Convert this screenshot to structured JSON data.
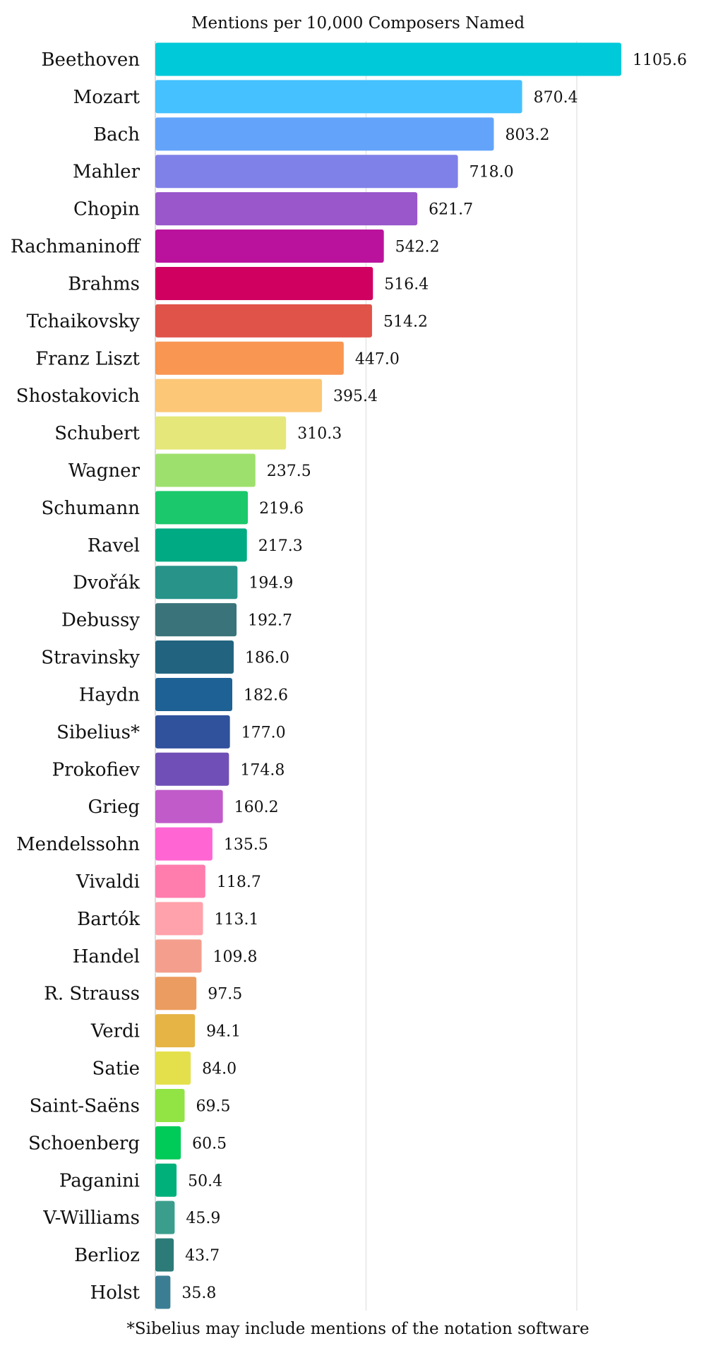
{
  "chart_data": {
    "type": "bar",
    "orientation": "horizontal",
    "title": "Mentions per 10,000 Composers Named",
    "xlabel": "",
    "ylabel": "",
    "xlim": [
      0,
      2000
    ],
    "grid": true,
    "footnote": "*Sibelius may include mentions of the notation software",
    "categories": [
      "Beethoven",
      "Mozart",
      "Bach",
      "Mahler",
      "Chopin",
      "Rachmaninoff",
      "Brahms",
      "Tchaikovsky",
      "Franz Liszt",
      "Shostakovich",
      "Schubert",
      "Wagner",
      "Schumann",
      "Ravel",
      "Dvořák",
      "Debussy",
      "Stravinsky",
      "Haydn",
      "Sibelius*",
      "Prokofiev",
      "Grieg",
      "Mendelssohn",
      "Vivaldi",
      "Bartók",
      "Handel",
      "R. Strauss",
      "Verdi",
      "Satie",
      "Saint-Saëns",
      "Schoenberg",
      "Paganini",
      "V-Williams",
      "Berlioz",
      "Holst"
    ],
    "values": [
      1105.6,
      870.4,
      803.2,
      718.0,
      621.7,
      542.2,
      516.4,
      514.2,
      447.0,
      395.4,
      310.3,
      237.5,
      219.6,
      217.3,
      194.9,
      192.7,
      186.0,
      182.6,
      177.0,
      174.8,
      160.2,
      135.5,
      118.7,
      113.1,
      109.8,
      97.5,
      94.1,
      84.0,
      69.5,
      60.5,
      50.4,
      45.9,
      43.7,
      35.8
    ],
    "value_labels": [
      "1105.6",
      "870.4",
      "803.2",
      "718.0",
      "621.7",
      "542.2",
      "516.4",
      "514.2",
      "447.0",
      "395.4",
      "310.3",
      "237.5",
      "219.6",
      "217.3",
      "194.9",
      "192.7",
      "186.0",
      "182.6",
      "177.0",
      "174.8",
      "160.2",
      "135.5",
      "118.7",
      "113.1",
      "109.8",
      "97.5",
      "94.1",
      "84.0",
      "69.5",
      "60.5",
      "50.4",
      "45.9",
      "43.7",
      "35.8"
    ],
    "colors": [
      "#00c9d9",
      "#45c1ff",
      "#63a4fa",
      "#7f80e8",
      "#9957cb",
      "#bb129d",
      "#d00060",
      "#e05349",
      "#f89652",
      "#fcc776",
      "#e5e77a",
      "#9ee06d",
      "#1bc86b",
      "#00aa82",
      "#289389",
      "#3a747a",
      "#226480",
      "#1e6194",
      "#30519c",
      "#7050b6",
      "#c05bc9",
      "#ff66d3",
      "#ff7dad",
      "#ffa2ab",
      "#f49f8d",
      "#eb9c60",
      "#e5b444",
      "#e4e04c",
      "#92e344",
      "#00ca58",
      "#00b07b",
      "#3b9e8c",
      "#2c7b78",
      "#3b7e94"
    ]
  }
}
